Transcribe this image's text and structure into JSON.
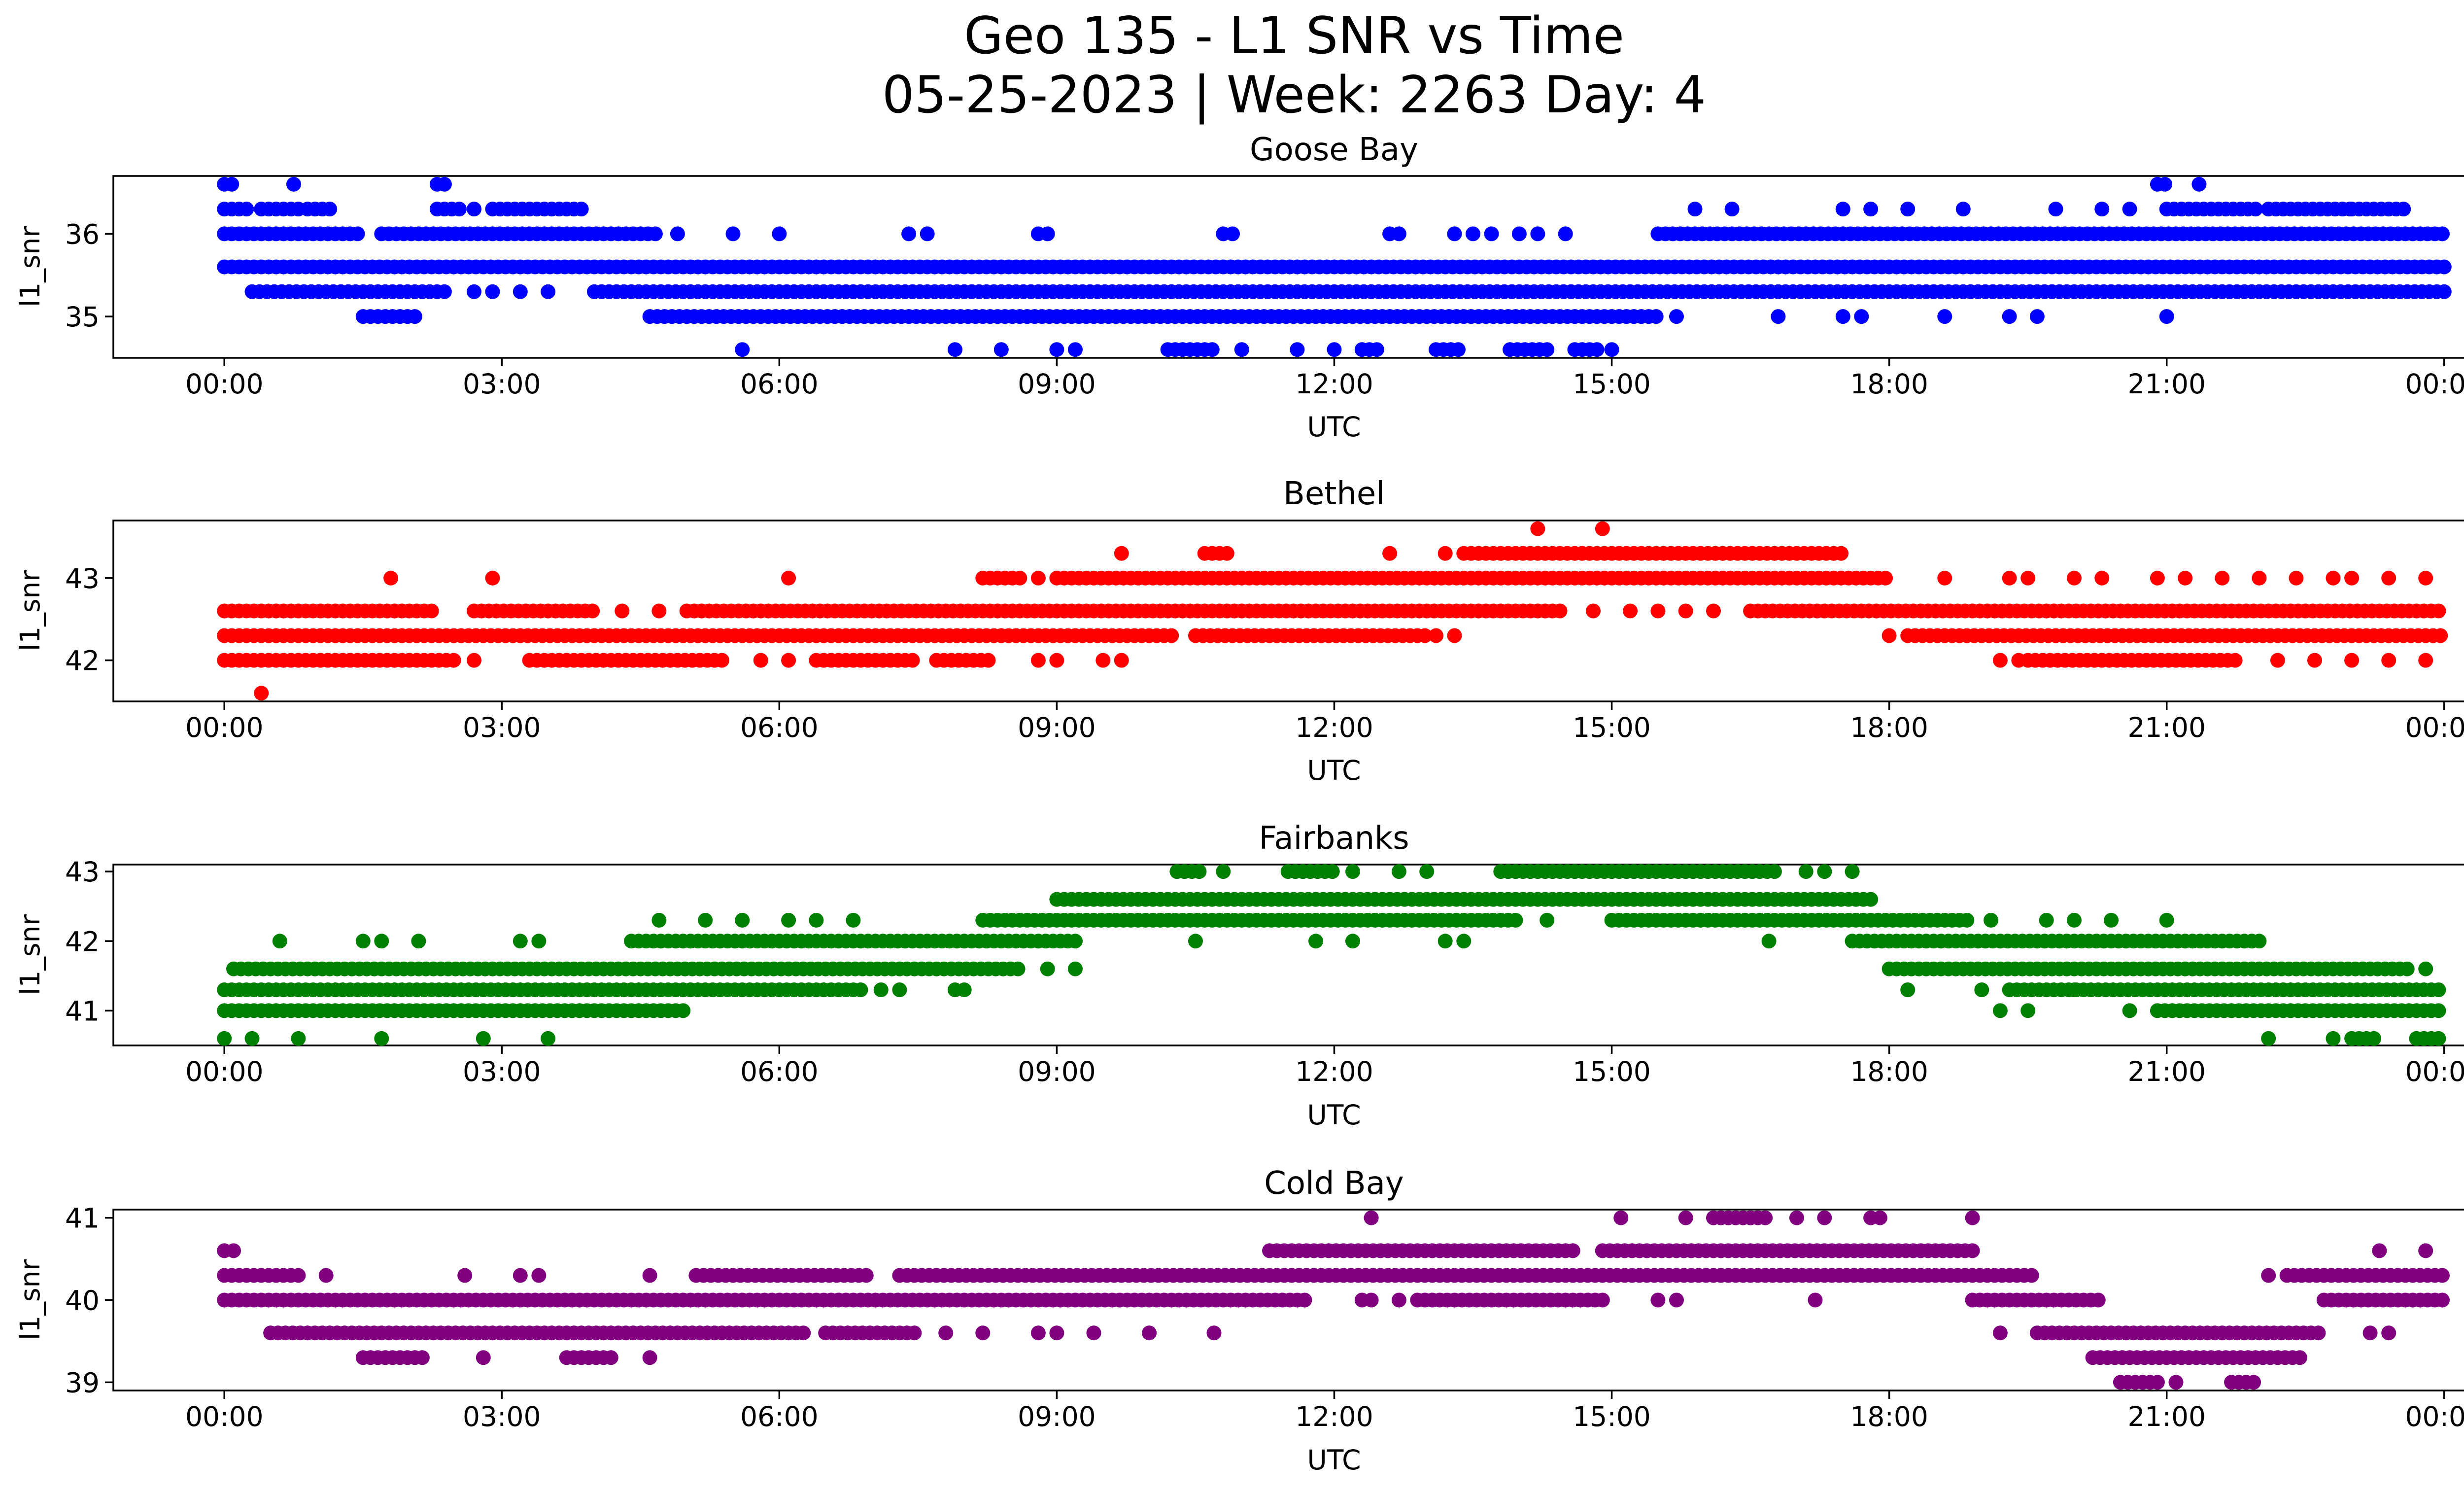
{
  "figure": {
    "title_line1": "Geo 135 - L1 SNR vs Time",
    "title_line2": "05-25-2023 | Week: 2263 Day: 4"
  },
  "chart_data": [
    {
      "type": "scatter",
      "title": "Goose Bay",
      "xlabel": "UTC",
      "ylabel": "l1_snr",
      "color": "#0000ff",
      "x_ticks": [
        "00:00",
        "03:00",
        "06:00",
        "09:00",
        "12:00",
        "15:00",
        "18:00",
        "21:00",
        "00:00"
      ],
      "xlim_hours": [
        -1.2,
        25.2
      ],
      "y_ticks": [
        35,
        36
      ],
      "ylim": [
        34.5,
        36.7
      ],
      "grid": false,
      "series": [
        {
          "y": 36.6,
          "ranges": [
            [
              0.0,
              0.1
            ],
            [
              0.75,
              0.8
            ],
            [
              2.3,
              2.4
            ],
            [
              20.9,
              21.0
            ],
            [
              21.35,
              21.4
            ]
          ],
          "isolated": []
        },
        {
          "y": 36.3,
          "ranges": [
            [
              0.0,
              0.3
            ],
            [
              0.4,
              0.8
            ],
            [
              0.9,
              1.2
            ],
            [
              2.3,
              2.6
            ],
            [
              2.9,
              3.9
            ],
            [
              21.0,
              22.0
            ],
            [
              22.1,
              23.0
            ],
            [
              23.0,
              23.6
            ]
          ],
          "isolated": [
            2.7,
            15.9,
            16.3,
            17.5,
            17.8,
            18.2,
            18.8,
            19.8,
            20.3,
            20.6
          ]
        },
        {
          "y": 36.0,
          "ranges": [
            [
              0.0,
              1.5
            ],
            [
              1.7,
              4.7
            ],
            [
              15.5,
              24.0
            ]
          ],
          "isolated": [
            4.9,
            5.5,
            6.0,
            7.4,
            7.6,
            8.8,
            8.9,
            10.8,
            10.9,
            12.6,
            12.7,
            13.3,
            13.5,
            13.7,
            14.0,
            14.2,
            14.5
          ]
        },
        {
          "y": 35.6,
          "ranges": [
            [
              0.0,
              24.0
            ]
          ],
          "isolated": []
        },
        {
          "y": 35.3,
          "ranges": [
            [
              0.3,
              2.4
            ],
            [
              4.0,
              24.0
            ]
          ],
          "isolated": [
            2.7,
            2.9,
            3.2,
            3.5
          ]
        },
        {
          "y": 35.0,
          "ranges": [
            [
              1.5,
              2.1
            ],
            [
              4.6,
              15.5
            ]
          ],
          "isolated": [
            15.7,
            16.8,
            17.5,
            17.7,
            18.6,
            19.3,
            19.6,
            21.0
          ]
        },
        {
          "y": 34.6,
          "ranges": [
            [
              10.2,
              10.7
            ],
            [
              12.3,
              12.5
            ],
            [
              13.1,
              13.4
            ],
            [
              13.9,
              14.3
            ],
            [
              14.6,
              14.9
            ]
          ],
          "isolated": [
            5.6,
            7.9,
            8.4,
            9.0,
            9.2,
            11.0,
            11.6,
            12.0,
            15.0
          ]
        }
      ]
    },
    {
      "type": "scatter",
      "title": "Bethel",
      "xlabel": "UTC",
      "ylabel": "l1_snr",
      "color": "#ff0000",
      "x_ticks": [
        "00:00",
        "03:00",
        "06:00",
        "09:00",
        "12:00",
        "15:00",
        "18:00",
        "21:00",
        "00:00"
      ],
      "xlim_hours": [
        -1.2,
        25.2
      ],
      "y_ticks": [
        42,
        43
      ],
      "ylim": [
        41.5,
        43.7
      ],
      "grid": false,
      "series": [
        {
          "y": 43.6,
          "ranges": [],
          "isolated": [
            14.2,
            14.9
          ]
        },
        {
          "y": 43.3,
          "ranges": [
            [
              13.4,
              17.5
            ],
            [
              10.6,
              10.9
            ]
          ],
          "isolated": [
            9.7,
            12.6,
            13.2
          ]
        },
        {
          "y": 43.0,
          "ranges": [
            [
              9.0,
              18.0
            ],
            [
              8.2,
              8.6
            ]
          ],
          "isolated": [
            1.8,
            2.9,
            6.1,
            8.8,
            18.6,
            19.3,
            19.5,
            20.0,
            20.3,
            20.9,
            21.2,
            21.6,
            22.0,
            22.4,
            22.8,
            23.0,
            23.4,
            23.8
          ]
        },
        {
          "y": 42.6,
          "ranges": [
            [
              0.0,
              2.3
            ],
            [
              2.7,
              4.0
            ],
            [
              5.0,
              14.5
            ],
            [
              16.5,
              24.0
            ]
          ],
          "isolated": [
            4.3,
            4.7,
            14.8,
            15.2,
            15.5,
            15.8,
            16.1
          ]
        },
        {
          "y": 42.3,
          "ranges": [
            [
              0.0,
              10.3
            ],
            [
              10.5,
              13.0
            ],
            [
              18.2,
              24.0
            ]
          ],
          "isolated": [
            13.1,
            13.3,
            18.0
          ]
        },
        {
          "y": 42.0,
          "ranges": [
            [
              0.0,
              2.5
            ],
            [
              3.3,
              5.4
            ],
            [
              6.4,
              7.5
            ],
            [
              7.7,
              8.3
            ],
            [
              19.5,
              21.8
            ]
          ],
          "isolated": [
            2.7,
            5.8,
            6.1,
            8.8,
            9.0,
            9.5,
            9.7,
            19.2,
            19.4,
            22.2,
            22.6,
            23.0,
            23.4,
            23.8
          ]
        },
        {
          "y": 41.6,
          "ranges": [],
          "isolated": [
            0.4
          ]
        }
      ]
    },
    {
      "type": "scatter",
      "title": "Fairbanks",
      "xlabel": "UTC",
      "ylabel": "l1_snr",
      "color": "#008000",
      "x_ticks": [
        "00:00",
        "03:00",
        "06:00",
        "09:00",
        "12:00",
        "15:00",
        "18:00",
        "21:00",
        "00:00"
      ],
      "xlim_hours": [
        -1.2,
        25.2
      ],
      "y_ticks": [
        41,
        42,
        43
      ],
      "ylim": [
        40.5,
        43.1
      ],
      "grid": false,
      "series": [
        {
          "y": 43.0,
          "ranges": [
            [
              13.8,
              16.8
            ],
            [
              10.3,
              10.6
            ],
            [
              11.5,
              12.0
            ]
          ],
          "isolated": [
            10.8,
            12.2,
            12.7,
            13.0,
            17.1,
            17.3,
            17.6
          ]
        },
        {
          "y": 42.6,
          "ranges": [
            [
              9.0,
              17.8
            ]
          ],
          "isolated": []
        },
        {
          "y": 42.3,
          "ranges": [
            [
              8.2,
              14.0
            ],
            [
              15.0,
              18.9
            ]
          ],
          "isolated": [
            4.7,
            5.2,
            5.6,
            6.1,
            6.4,
            6.8,
            14.3,
            19.1,
            19.7,
            20.0,
            20.4,
            21.0
          ]
        },
        {
          "y": 42.0,
          "ranges": [
            [
              4.4,
              9.2
            ],
            [
              17.6,
              22.0
            ]
          ],
          "isolated": [
            0.6,
            1.5,
            1.7,
            2.1,
            3.2,
            3.4,
            10.5,
            11.8,
            12.2,
            13.2,
            13.4,
            16.7
          ]
        },
        {
          "y": 41.6,
          "ranges": [
            [
              0.1,
              8.6
            ],
            [
              18.0,
              23.6
            ]
          ],
          "isolated": [
            8.9,
            9.2,
            23.8
          ]
        },
        {
          "y": 41.3,
          "ranges": [
            [
              0.0,
              6.9
            ],
            [
              19.3,
              24.0
            ]
          ],
          "isolated": [
            7.1,
            7.3,
            7.9,
            8.0,
            18.2,
            19.0,
            20.0
          ]
        },
        {
          "y": 41.0,
          "ranges": [
            [
              0.0,
              5.0
            ],
            [
              20.9,
              24.0
            ]
          ],
          "isolated": [
            19.2,
            19.5,
            20.6
          ]
        },
        {
          "y": 40.6,
          "ranges": [
            [
              23.0,
              23.3
            ],
            [
              23.7,
              24.0
            ]
          ],
          "isolated": [
            0.0,
            0.3,
            0.8,
            1.7,
            2.8,
            3.5,
            22.1,
            22.8
          ]
        }
      ]
    },
    {
      "type": "scatter",
      "title": "Cold Bay",
      "xlabel": "UTC",
      "ylabel": "l1_snr",
      "color": "#800080",
      "x_ticks": [
        "00:00",
        "03:00",
        "06:00",
        "09:00",
        "12:00",
        "15:00",
        "18:00",
        "21:00",
        "00:00"
      ],
      "xlim_hours": [
        -1.2,
        25.2
      ],
      "y_ticks": [
        39,
        40,
        41
      ],
      "ylim": [
        38.9,
        41.1
      ],
      "grid": false,
      "series": [
        {
          "y": 41.0,
          "ranges": [
            [
              16.1,
              16.7
            ]
          ],
          "isolated": [
            12.4,
            15.1,
            15.8,
            17.0,
            17.3,
            17.8,
            17.9,
            18.9
          ]
        },
        {
          "y": 40.6,
          "ranges": [
            [
              11.3,
              14.6
            ],
            [
              14.9,
              18.9
            ]
          ],
          "isolated": [
            0.0,
            0.1,
            23.3,
            23.8
          ]
        },
        {
          "y": 40.3,
          "ranges": [
            [
              0.0,
              0.8
            ],
            [
              5.1,
              7.0
            ],
            [
              7.3,
              19.6
            ],
            [
              22.3,
              24.0
            ]
          ],
          "isolated": [
            1.1,
            2.6,
            3.2,
            3.4,
            4.6,
            22.1
          ]
        },
        {
          "y": 40.0,
          "ranges": [
            [
              0.0,
              11.7
            ],
            [
              12.9,
              14.9
            ],
            [
              18.9,
              20.3
            ],
            [
              22.7,
              24.0
            ]
          ],
          "isolated": [
            12.3,
            12.4,
            12.7,
            15.5,
            15.7,
            17.2
          ]
        },
        {
          "y": 39.6,
          "ranges": [
            [
              0.5,
              6.3
            ],
            [
              6.5,
              7.5
            ],
            [
              19.6,
              22.7
            ]
          ],
          "isolated": [
            7.8,
            8.2,
            8.8,
            9.0,
            9.4,
            10.0,
            10.7,
            19.2,
            23.2,
            23.4
          ]
        },
        {
          "y": 39.3,
          "ranges": [
            [
              1.5,
              2.2
            ],
            [
              3.7,
              4.2
            ],
            [
              20.2,
              22.5
            ]
          ],
          "isolated": [
            2.8,
            4.6
          ]
        },
        {
          "y": 39.0,
          "ranges": [
            [
              20.5,
              20.9
            ],
            [
              21.7,
              22.0
            ]
          ],
          "isolated": [
            21.1
          ]
        }
      ]
    }
  ]
}
